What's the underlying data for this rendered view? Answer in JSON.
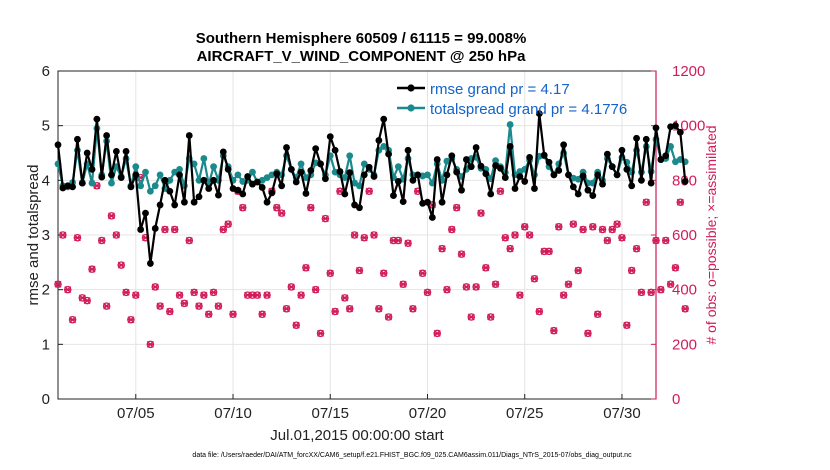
{
  "chart_data": {
    "type": "line",
    "title_line1": "Southern Hemisphere 60509 / 61115 = 99.008%",
    "title_line2": "AIRCRAFT_V_WIND_COMPONENT @ 250 hPa",
    "xlabel": "Jul.01,2015 00:00:00 start",
    "ylabel_left": "rmse and totalspread",
    "ylabel_right": "# of obs: o=possible; ×=assimilated",
    "footnote": "data file: /Users/raeder/DAI/ATM_forcXX/CAM6_setup/f.e21.FHIST_BGC.f09_025.CAM6assim.011/Diags_NTrS_2015-07/obs_diag_output.nc",
    "x_range_days": [
      1,
      31.75
    ],
    "x_ticks": [
      {
        "day": 5,
        "label": "07/05"
      },
      {
        "day": 10,
        "label": "07/10"
      },
      {
        "day": 15,
        "label": "07/15"
      },
      {
        "day": 20,
        "label": "07/20"
      },
      {
        "day": 25,
        "label": "07/25"
      },
      {
        "day": 30,
        "label": "07/30"
      }
    ],
    "ylim_left": [
      0,
      6
    ],
    "yticks_left": [
      0,
      1,
      2,
      3,
      4,
      5,
      6
    ],
    "ylim_right": [
      0,
      1200
    ],
    "yticks_right": [
      0,
      200,
      400,
      600,
      800,
      1000,
      1200
    ],
    "colors": {
      "rmse": "#000000",
      "spread": "#1a8a8c",
      "obs": "#d01c5a",
      "legend_text": "#1463c8",
      "grid": "#e4e4e4"
    },
    "legend_position": "top-right",
    "series": [
      {
        "name": "rmse grand pr = 4.17",
        "color": "#000000",
        "axis": "left",
        "values": [
          4.65,
          3.86,
          3.9,
          3.88,
          4.75,
          3.95,
          4.5,
          4.2,
          5.12,
          4.06,
          4.82,
          4.1,
          4.53,
          4.05,
          4.53,
          3.88,
          4.1,
          3.1,
          3.4,
          2.48,
          3.12,
          3.55,
          4.0,
          3.8,
          3.55,
          4.1,
          3.6,
          4.82,
          3.6,
          3.7,
          4.0,
          3.85,
          4.0,
          3.73,
          4.52,
          4.2,
          3.85,
          3.82,
          3.75,
          4.07,
          3.93,
          3.97,
          3.87,
          3.6,
          3.77,
          4.12,
          3.9,
          4.6,
          4.2,
          3.97,
          4.15,
          3.76,
          4.18,
          4.58,
          4.3,
          4.03,
          4.8,
          4.55,
          4.16,
          3.75,
          4.14,
          3.55,
          3.5,
          4.1,
          4.24,
          4.07,
          4.73,
          5.12,
          4.48,
          3.72,
          3.98,
          3.61,
          4.55,
          4.0,
          4.1,
          3.58,
          3.6,
          3.32,
          4.38,
          3.6,
          4.1,
          4.45,
          4.15,
          3.82,
          4.38,
          4.25,
          4.6,
          4.26,
          4.12,
          3.75,
          4.27,
          4.22,
          4.05,
          4.62,
          3.85,
          4.07,
          3.98,
          4.42,
          3.85,
          5.22,
          4.46,
          4.33,
          4.1,
          4.18,
          4.65,
          4.1,
          3.88,
          3.75,
          4.08,
          3.82,
          3.72,
          4.1,
          3.93,
          4.48,
          4.25,
          4.1,
          4.55,
          4.2,
          3.9,
          4.77,
          4.0,
          4.75,
          3.95,
          4.96,
          4.38,
          4.45,
          4.98,
          5.0,
          4.88,
          3.98
        ]
      },
      {
        "name": "totalspread grand pr = 4.1776",
        "color": "#1a8a8c",
        "axis": "left",
        "values": [
          4.3,
          3.9,
          3.88,
          3.96,
          4.55,
          3.95,
          4.3,
          3.95,
          4.95,
          4.1,
          4.72,
          3.95,
          4.25,
          4.07,
          4.4,
          3.9,
          4.25,
          3.9,
          4.15,
          3.8,
          3.9,
          4.1,
          3.85,
          4.0,
          4.15,
          4.2,
          3.9,
          4.4,
          4.3,
          4.0,
          4.4,
          3.93,
          4.25,
          4.0,
          4.45,
          4.25,
          4.0,
          4.1,
          3.98,
          4.0,
          4.15,
          3.97,
          4.0,
          4.05,
          4.1,
          4.15,
          4.1,
          4.45,
          4.2,
          4.05,
          4.3,
          4.05,
          4.1,
          4.32,
          4.3,
          4.1,
          4.45,
          4.15,
          4.1,
          4.05,
          4.45,
          3.95,
          3.9,
          4.3,
          4.2,
          4.1,
          4.55,
          4.62,
          4.55,
          4.05,
          4.25,
          4.02,
          4.4,
          4.1,
          4.1,
          4.08,
          4.1,
          3.95,
          4.3,
          4.0,
          4.35,
          4.4,
          4.2,
          4.07,
          4.2,
          4.4,
          4.42,
          4.22,
          4.2,
          4.03,
          4.36,
          4.25,
          4.14,
          5.02,
          4.1,
          4.16,
          4.2,
          4.37,
          4.1,
          4.44,
          4.45,
          4.25,
          4.1,
          4.3,
          4.5,
          4.1,
          4.04,
          4.02,
          4.15,
          3.95,
          3.95,
          4.15,
          4.0,
          4.4,
          4.25,
          4.1,
          4.42,
          4.33,
          4.15,
          4.55,
          4.15,
          4.62,
          4.16,
          4.75,
          4.38,
          4.4,
          4.62,
          4.34,
          4.38,
          4.34
        ]
      }
    ],
    "obs_counts": [
      420,
      600,
      400,
      290,
      590,
      370,
      360,
      475,
      780,
      580,
      340,
      670,
      600,
      490,
      390,
      290,
      380,
      810,
      590,
      200,
      410,
      340,
      620,
      320,
      620,
      380,
      350,
      580,
      390,
      340,
      380,
      310,
      390,
      340,
      620,
      640,
      310,
      760,
      700,
      380,
      380,
      380,
      310,
      380,
      760,
      700,
      680,
      330,
      410,
      270,
      380,
      480,
      700,
      400,
      240,
      660,
      460,
      320,
      760,
      370,
      330,
      600,
      470,
      590,
      760,
      600,
      330,
      460,
      300,
      580,
      580,
      420,
      570,
      330,
      760,
      460,
      390,
      710,
      240,
      550,
      400,
      620,
      700,
      530,
      410,
      300,
      410,
      680,
      480,
      300,
      420,
      760,
      590,
      550,
      600,
      380,
      630,
      600,
      440,
      320,
      540,
      540,
      250,
      630,
      380,
      420,
      640,
      470,
      620,
      240,
      630,
      310,
      620,
      580,
      620,
      640,
      590,
      270,
      470,
      550,
      390,
      720,
      390,
      580,
      400,
      580,
      420,
      480,
      720,
      330
    ]
  }
}
